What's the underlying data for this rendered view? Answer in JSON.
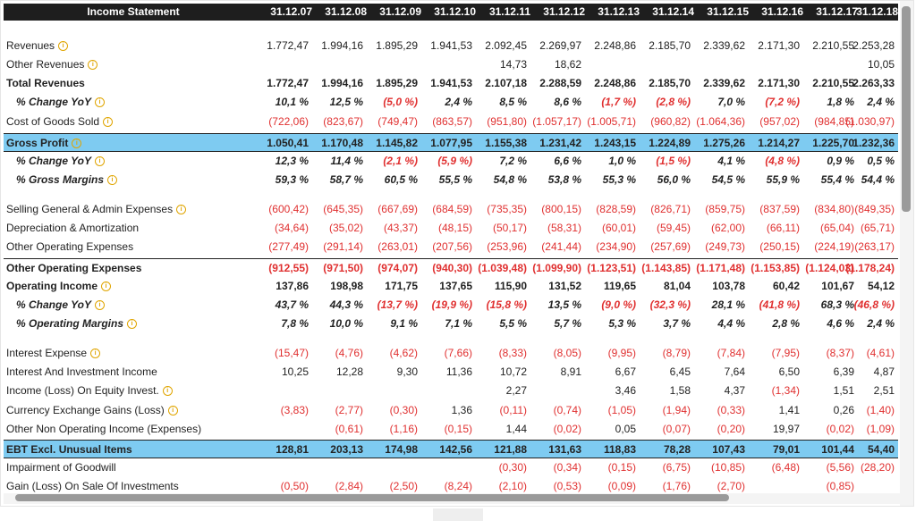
{
  "header": {
    "title": "Income Statement",
    "years": [
      "31.12.07",
      "31.12.08",
      "31.12.09",
      "31.12.10",
      "31.12.11",
      "31.12.12",
      "31.12.13",
      "31.12.14",
      "31.12.15",
      "31.12.16",
      "31.12.17",
      "31.12.18"
    ]
  },
  "info_glyph": "i",
  "rows": [
    {
      "label": "Revenues",
      "info": true,
      "style": "",
      "values": [
        "1.772,47",
        "1.994,16",
        "1.895,29",
        "1.941,53",
        "2.092,45",
        "2.269,97",
        "2.248,86",
        "2.185,70",
        "2.339,62",
        "2.171,30",
        "2.210,55",
        "2.253,28"
      ]
    },
    {
      "label": "Other Revenues",
      "info": true,
      "style": "",
      "values": [
        "",
        "",
        "",
        "",
        "14,73",
        "18,62",
        "",
        "",
        "",
        "",
        "",
        "10,05"
      ]
    },
    {
      "label": "Total Revenues",
      "info": false,
      "style": "bold",
      "values": [
        "1.772,47",
        "1.994,16",
        "1.895,29",
        "1.941,53",
        "2.107,18",
        "2.288,59",
        "2.248,86",
        "2.185,70",
        "2.339,62",
        "2.171,30",
        "2.210,55",
        "2.263,33"
      ]
    },
    {
      "label": "% Change YoY",
      "info": true,
      "style": "ital",
      "values": [
        "10,1 %",
        "12,5 %",
        "(5,0 %)",
        "2,4 %",
        "8,5 %",
        "8,6 %",
        "(1,7 %)",
        "(2,8 %)",
        "7,0 %",
        "(7,2 %)",
        "1,8 %",
        "2,4 %"
      ]
    },
    {
      "label": "Cost of Goods Sold",
      "info": true,
      "style": "",
      "values": [
        "(722,06)",
        "(823,67)",
        "(749,47)",
        "(863,57)",
        "(951,80)",
        "(1.057,17)",
        "(1.005,71)",
        "(960,82)",
        "(1.064,36)",
        "(957,02)",
        "(984,85)",
        "(1.030,97)"
      ]
    },
    {
      "label": "Gross Profit",
      "info": true,
      "style": "bold hl",
      "values": [
        "1.050,41",
        "1.170,48",
        "1.145,82",
        "1.077,95",
        "1.155,38",
        "1.231,42",
        "1.243,15",
        "1.224,89",
        "1.275,26",
        "1.214,27",
        "1.225,70",
        "1.232,36"
      ]
    },
    {
      "label": "% Change YoY",
      "info": true,
      "style": "ital",
      "values": [
        "12,3 %",
        "11,4 %",
        "(2,1 %)",
        "(5,9 %)",
        "7,2 %",
        "6,6 %",
        "1,0 %",
        "(1,5 %)",
        "4,1 %",
        "(4,8 %)",
        "0,9 %",
        "0,5 %"
      ]
    },
    {
      "label": "% Gross Margins",
      "info": true,
      "style": "ital",
      "values": [
        "59,3 %",
        "58,7 %",
        "60,5 %",
        "55,5 %",
        "54,8 %",
        "53,8 %",
        "55,3 %",
        "56,0 %",
        "54,5 %",
        "55,9 %",
        "55,4 %",
        "54,4 %"
      ]
    },
    {
      "label": "Selling General & Admin Expenses",
      "info": true,
      "style": "",
      "values": [
        "(600,42)",
        "(645,35)",
        "(667,69)",
        "(684,59)",
        "(735,35)",
        "(800,15)",
        "(828,59)",
        "(826,71)",
        "(859,75)",
        "(837,59)",
        "(834,80)",
        "(849,35)"
      ]
    },
    {
      "label": "Depreciation & Amortization",
      "info": false,
      "style": "",
      "values": [
        "(34,64)",
        "(35,02)",
        "(43,37)",
        "(48,15)",
        "(50,17)",
        "(58,31)",
        "(60,01)",
        "(59,45)",
        "(62,00)",
        "(66,11)",
        "(65,04)",
        "(65,71)"
      ]
    },
    {
      "label": "Other Operating Expenses",
      "info": false,
      "style": "",
      "values": [
        "(277,49)",
        "(291,14)",
        "(263,01)",
        "(207,56)",
        "(253,96)",
        "(241,44)",
        "(234,90)",
        "(257,69)",
        "(249,73)",
        "(250,15)",
        "(224,19)",
        "(263,17)"
      ]
    },
    {
      "label": "Other Operating Expenses",
      "info": false,
      "style": "bold topline",
      "values": [
        "(912,55)",
        "(971,50)",
        "(974,07)",
        "(940,30)",
        "(1.039,48)",
        "(1.099,90)",
        "(1.123,51)",
        "(1.143,85)",
        "(1.171,48)",
        "(1.153,85)",
        "(1.124,03)",
        "(1.178,24)"
      ]
    },
    {
      "label": "Operating Income",
      "info": true,
      "style": "bold",
      "values": [
        "137,86",
        "198,98",
        "171,75",
        "137,65",
        "115,90",
        "131,52",
        "119,65",
        "81,04",
        "103,78",
        "60,42",
        "101,67",
        "54,12"
      ]
    },
    {
      "label": "% Change YoY",
      "info": true,
      "style": "ital",
      "values": [
        "43,7 %",
        "44,3 %",
        "(13,7 %)",
        "(19,9 %)",
        "(15,8 %)",
        "13,5 %",
        "(9,0 %)",
        "(32,3 %)",
        "28,1 %",
        "(41,8 %)",
        "68,3 %",
        "(46,8 %)"
      ]
    },
    {
      "label": "% Operating Margins",
      "info": true,
      "style": "ital",
      "values": [
        "7,8 %",
        "10,0 %",
        "9,1 %",
        "7,1 %",
        "5,5 %",
        "5,7 %",
        "5,3 %",
        "3,7 %",
        "4,4 %",
        "2,8 %",
        "4,6 %",
        "2,4 %"
      ]
    },
    {
      "label": "Interest Expense",
      "info": true,
      "style": "",
      "values": [
        "(15,47)",
        "(4,76)",
        "(4,62)",
        "(7,66)",
        "(8,33)",
        "(8,05)",
        "(9,95)",
        "(8,79)",
        "(7,84)",
        "(7,95)",
        "(8,37)",
        "(4,61)"
      ]
    },
    {
      "label": "Interest And Investment Income",
      "info": false,
      "style": "",
      "values": [
        "10,25",
        "12,28",
        "9,30",
        "11,36",
        "10,72",
        "8,91",
        "6,67",
        "6,45",
        "7,64",
        "6,50",
        "6,39",
        "4,87"
      ]
    },
    {
      "label": "Income (Loss) On Equity Invest.",
      "info": true,
      "style": "",
      "values": [
        "",
        "",
        "",
        "",
        "2,27",
        "",
        "3,46",
        "1,58",
        "4,37",
        "(1,34)",
        "1,51",
        "2,51"
      ]
    },
    {
      "label": "Currency Exchange Gains (Loss)",
      "info": true,
      "style": "",
      "values": [
        "(3,83)",
        "(2,77)",
        "(0,30)",
        "1,36",
        "(0,11)",
        "(0,74)",
        "(1,05)",
        "(1,94)",
        "(0,33)",
        "1,41",
        "0,26",
        "(1,40)"
      ]
    },
    {
      "label": "Other Non Operating Income (Expenses)",
      "info": false,
      "style": "",
      "values": [
        "",
        "(0,61)",
        "(1,16)",
        "(0,15)",
        "1,44",
        "(0,02)",
        "0,05",
        "(0,07)",
        "(0,20)",
        "19,97",
        "(0,02)",
        "(1,09)"
      ]
    },
    {
      "label": "EBT Excl. Unusual Items",
      "info": false,
      "style": "bold hl",
      "values": [
        "128,81",
        "203,13",
        "174,98",
        "142,56",
        "121,88",
        "131,63",
        "118,83",
        "78,28",
        "107,43",
        "79,01",
        "101,44",
        "54,40"
      ]
    },
    {
      "label": "Impairment of Goodwill",
      "info": false,
      "style": "",
      "values": [
        "",
        "",
        "",
        "",
        "(0,30)",
        "(0,34)",
        "(0,15)",
        "(6,75)",
        "(10,85)",
        "(6,48)",
        "(5,56)",
        "(28,20)"
      ]
    },
    {
      "label": "Gain (Loss) On Sale Of Investments",
      "info": false,
      "style": "",
      "values": [
        "(0,50)",
        "(2,84)",
        "(2,50)",
        "(8,24)",
        "(2,10)",
        "(0,53)",
        "(0,09)",
        "(1,76)",
        "(2,70)",
        "",
        "(0,85)",
        ""
      ]
    }
  ]
}
